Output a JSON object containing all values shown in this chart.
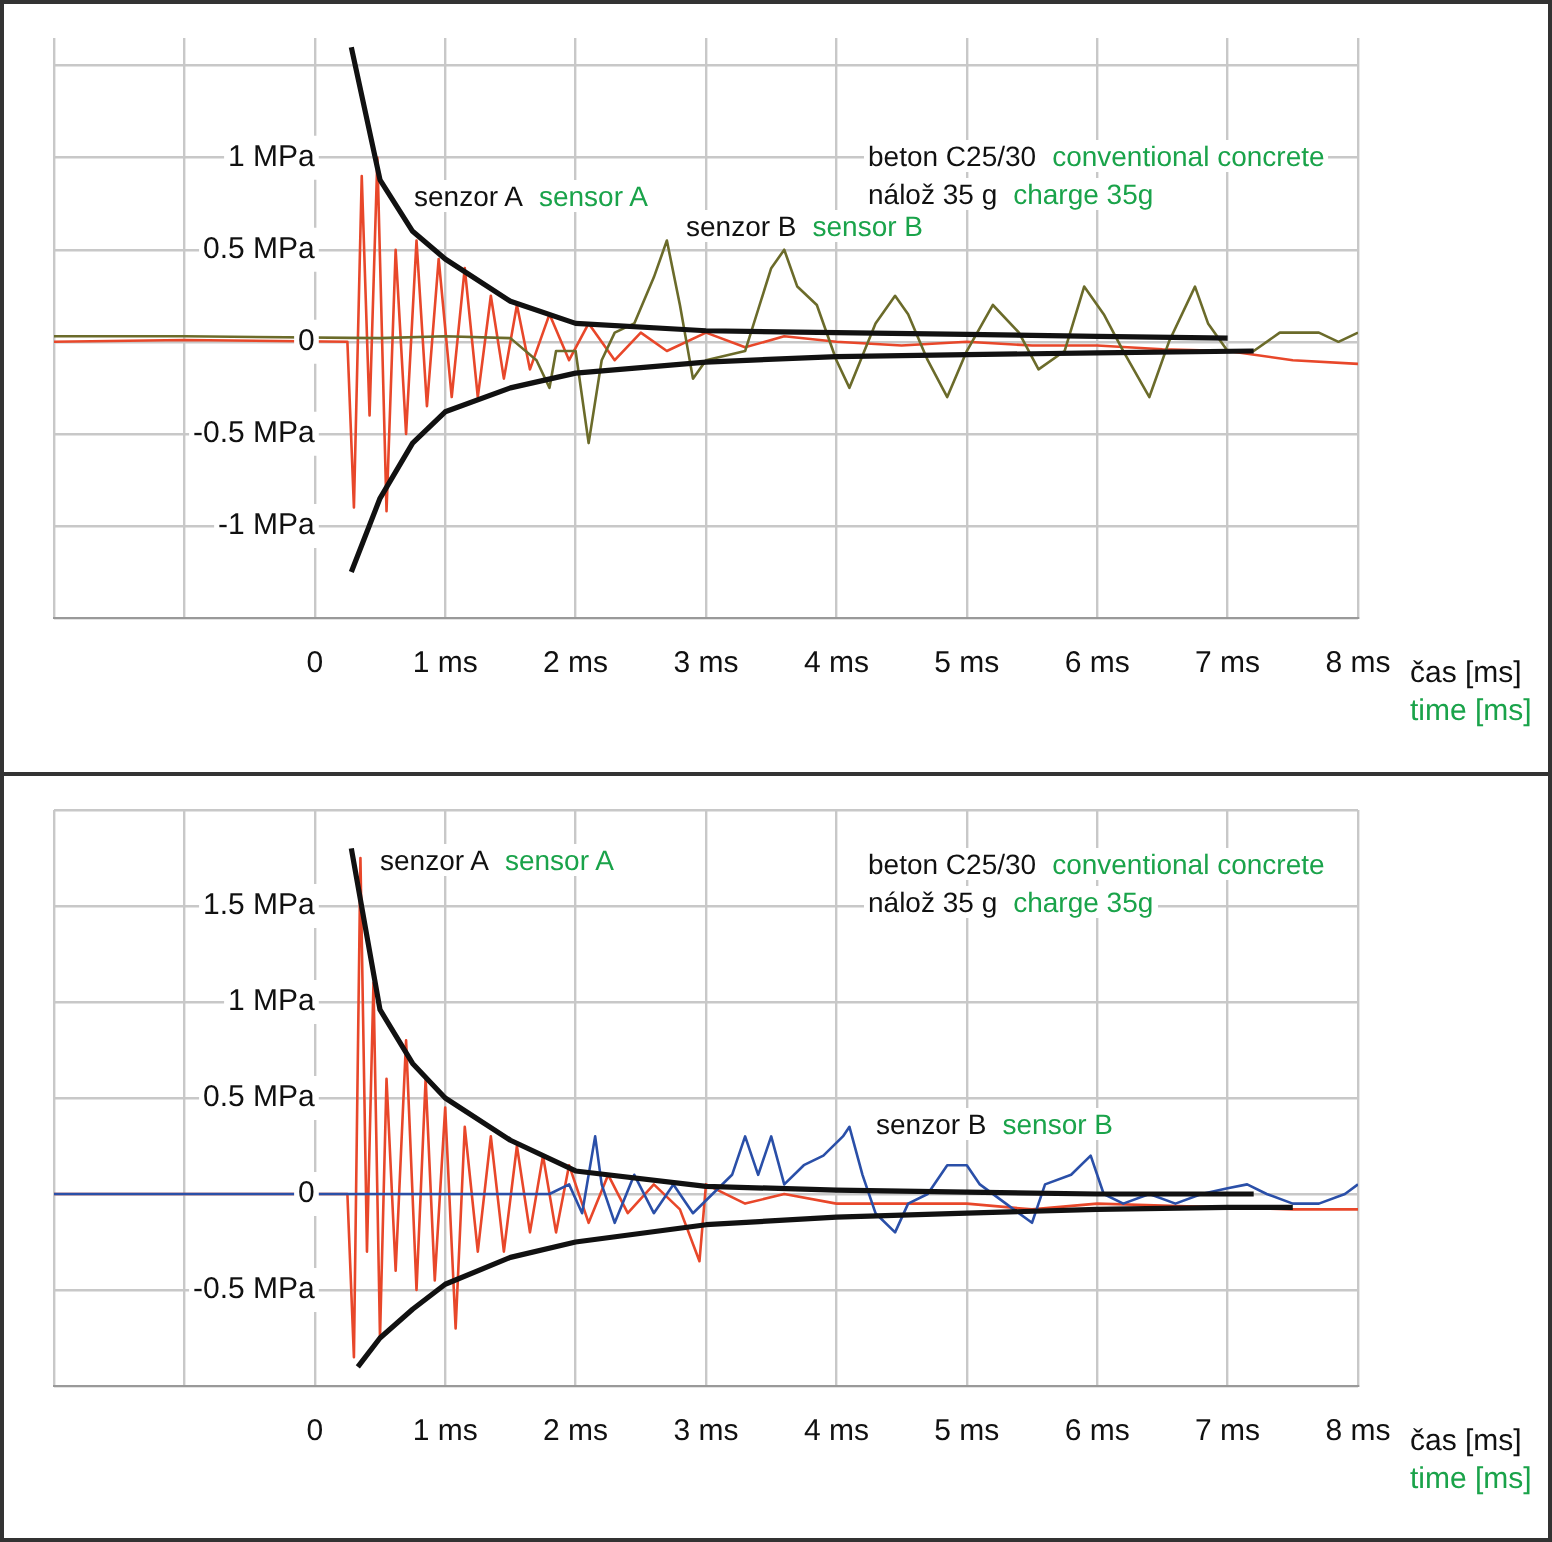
{
  "chart_data": [
    {
      "type": "line",
      "xlim": [
        -2,
        8
      ],
      "ylim": [
        -1.5,
        1.65
      ],
      "xticks": [
        {
          "value": -2,
          "label": null
        },
        {
          "value": -1,
          "label": null
        },
        0,
        {
          "value": 1,
          "label": "1 ms"
        },
        {
          "value": 2,
          "label": "2 ms"
        },
        {
          "value": 3,
          "label": "3 ms"
        },
        {
          "value": 4,
          "label": "4 ms"
        },
        {
          "value": 5,
          "label": "5 ms"
        },
        {
          "value": 6,
          "label": "6 ms"
        },
        {
          "value": 7,
          "label": "7 ms"
        },
        {
          "value": 8,
          "label": "8 ms"
        }
      ],
      "yticks": [
        {
          "value": -1.5,
          "label": null
        },
        {
          "value": -1,
          "label": "-1 MPa"
        },
        {
          "value": -0.5,
          "label": "-0.5 MPa"
        },
        0,
        {
          "value": 0.5,
          "label": "0.5 MPa"
        },
        {
          "value": 1,
          "label": "1 MPa"
        },
        {
          "value": 1.5,
          "label": null
        }
      ],
      "xlabel": "čas [ms]\ntime [ms]",
      "grid": true,
      "annotations": [
        "senzor A",
        "sensor A",
        "senzor B",
        "sensor B",
        "beton C25/30",
        "conventional concrete",
        "nálož 35 g",
        "charge 35g"
      ],
      "series": [
        {
          "color": "#e8472a",
          "x": [
            -2,
            -1,
            0.25,
            0.3,
            0.36,
            0.42,
            0.48,
            0.55,
            0.62,
            0.7,
            0.78,
            0.86,
            0.95,
            1.05,
            1.15,
            1.25,
            1.35,
            1.45,
            1.55,
            1.65,
            1.8,
            1.95,
            2.1,
            2.3,
            2.5,
            2.7,
            3.0,
            3.3,
            3.6,
            4,
            4.5,
            5,
            5.5,
            6,
            6.5,
            7,
            7.5,
            8
          ],
          "values": [
            0,
            0.01,
            0,
            -0.9,
            0.9,
            -0.4,
            1.0,
            -0.92,
            0.5,
            -0.5,
            0.55,
            -0.35,
            0.45,
            -0.3,
            0.4,
            -0.3,
            0.25,
            -0.2,
            0.2,
            -0.15,
            0.15,
            -0.1,
            0.1,
            -0.1,
            0.05,
            -0.05,
            0.05,
            -0.03,
            0.03,
            0,
            -0.02,
            0,
            -0.02,
            -0.02,
            -0.04,
            -0.05,
            -0.1,
            -0.12
          ]
        },
        {
          "color": "#6b6b2a",
          "x": [
            -2,
            -1,
            0.5,
            1,
            1.5,
            1.7,
            1.8,
            1.85,
            2.0,
            2.1,
            2.2,
            2.3,
            2.45,
            2.6,
            2.7,
            2.8,
            2.9,
            3.0,
            3.3,
            3.5,
            3.6,
            3.7,
            3.85,
            4.0,
            4.1,
            4.3,
            4.45,
            4.55,
            4.7,
            4.85,
            5.0,
            5.2,
            5.4,
            5.55,
            5.75,
            5.9,
            6.05,
            6.2,
            6.4,
            6.55,
            6.75,
            6.85,
            7.0,
            7.2,
            7.4,
            7.7,
            7.85,
            8
          ],
          "values": [
            0.03,
            0.03,
            0.02,
            0.03,
            0.02,
            -0.1,
            -0.25,
            -0.05,
            -0.05,
            -0.55,
            -0.1,
            0.05,
            0.1,
            0.35,
            0.55,
            0.2,
            -0.2,
            -0.1,
            -0.05,
            0.4,
            0.5,
            0.3,
            0.2,
            -0.1,
            -0.25,
            0.1,
            0.25,
            0.15,
            -0.1,
            -0.3,
            -0.05,
            0.2,
            0.05,
            -0.15,
            -0.05,
            0.3,
            0.15,
            -0.05,
            -0.3,
            0.0,
            0.3,
            0.1,
            -0.05,
            -0.05,
            0.05,
            0.05,
            0.0,
            0.05
          ]
        },
        {
          "color": "#111111",
          "x": [
            0.28,
            0.5,
            0.75,
            1,
            1.5,
            2,
            3,
            4,
            5,
            6,
            7
          ],
          "values": [
            1.6,
            0.88,
            0.6,
            0.45,
            0.22,
            0.1,
            0.06,
            0.05,
            0.04,
            0.03,
            0.02
          ]
        },
        {
          "color": "#111111",
          "x": [
            0.28,
            0.5,
            0.75,
            1,
            1.5,
            2,
            3,
            4,
            5,
            6,
            7.2
          ],
          "values": [
            -1.25,
            -0.85,
            -0.55,
            -0.38,
            -0.25,
            -0.17,
            -0.11,
            -0.08,
            -0.07,
            -0.06,
            -0.05
          ]
        }
      ]
    },
    {
      "type": "line",
      "xlim": [
        -2,
        8
      ],
      "ylim": [
        -1,
        2
      ],
      "xticks": [
        {
          "value": -2,
          "label": null
        },
        {
          "value": -1,
          "label": null
        },
        0,
        {
          "value": 1,
          "label": "1 ms"
        },
        {
          "value": 2,
          "label": "2 ms"
        },
        {
          "value": 3,
          "label": "3 ms"
        },
        {
          "value": 4,
          "label": "4 ms"
        },
        {
          "value": 5,
          "label": "5 ms"
        },
        {
          "value": 6,
          "label": "6 ms"
        },
        {
          "value": 7,
          "label": "7 ms"
        },
        {
          "value": 8,
          "label": "8 ms"
        }
      ],
      "yticks": [
        {
          "value": -1,
          "label": null
        },
        {
          "value": -0.5,
          "label": "-0.5 MPa"
        },
        0,
        {
          "value": 0.5,
          "label": "0.5 MPa"
        },
        {
          "value": 1,
          "label": "1 MPa"
        },
        {
          "value": 1.5,
          "label": "1.5 MPa"
        },
        {
          "value": 2,
          "label": null
        }
      ],
      "xlabel": "čas [ms]\ntime [ms]",
      "grid": true,
      "annotations": [
        "senzor A",
        "sensor A",
        "senzor B",
        "sensor B",
        "beton C25/30",
        "conventional concrete",
        "nálož 35 g",
        "charge 35g"
      ],
      "series": [
        {
          "color": "#e8472a",
          "x": [
            -2,
            0.25,
            0.3,
            0.35,
            0.4,
            0.45,
            0.5,
            0.55,
            0.62,
            0.7,
            0.78,
            0.85,
            0.92,
            1.0,
            1.08,
            1.15,
            1.25,
            1.35,
            1.45,
            1.55,
            1.65,
            1.75,
            1.85,
            1.95,
            2.1,
            2.25,
            2.4,
            2.6,
            2.8,
            2.95,
            3.0,
            3.3,
            3.6,
            4,
            4.5,
            5,
            5.5,
            6,
            6.5,
            7,
            7.5,
            8
          ],
          "values": [
            0,
            0,
            -0.85,
            1.75,
            -0.3,
            1.1,
            -0.75,
            0.6,
            -0.4,
            0.8,
            -0.5,
            0.6,
            -0.45,
            0.45,
            -0.7,
            0.35,
            -0.3,
            0.3,
            -0.3,
            0.25,
            -0.2,
            0.2,
            -0.2,
            0.15,
            -0.15,
            0.1,
            -0.1,
            0.05,
            -0.08,
            -0.35,
            0.05,
            -0.05,
            0,
            -0.05,
            -0.05,
            -0.05,
            -0.08,
            -0.05,
            -0.06,
            -0.07,
            -0.08,
            -0.08
          ]
        },
        {
          "color": "#2a4fa8",
          "x": [
            -2,
            -1,
            1,
            1.8,
            1.95,
            2.05,
            2.15,
            2.2,
            2.3,
            2.45,
            2.6,
            2.75,
            2.9,
            3.05,
            3.2,
            3.3,
            3.4,
            3.5,
            3.6,
            3.75,
            3.9,
            4.05,
            4.1,
            4.2,
            4.3,
            4.45,
            4.55,
            4.7,
            4.85,
            5.0,
            5.1,
            5.3,
            5.5,
            5.6,
            5.8,
            5.95,
            6.05,
            6.2,
            6.4,
            6.6,
            6.8,
            7.0,
            7.15,
            7.3,
            7.5,
            7.7,
            7.9,
            8
          ],
          "values": [
            0,
            0,
            0,
            0,
            0.05,
            -0.1,
            0.3,
            0.05,
            -0.15,
            0.1,
            -0.1,
            0.05,
            -0.1,
            0.0,
            0.1,
            0.3,
            0.1,
            0.3,
            0.05,
            0.15,
            0.2,
            0.3,
            0.35,
            0.1,
            -0.1,
            -0.2,
            -0.05,
            0.0,
            0.15,
            0.15,
            0.05,
            -0.05,
            -0.15,
            0.05,
            0.1,
            0.2,
            0.0,
            -0.05,
            0.0,
            -0.05,
            0.0,
            0.03,
            0.05,
            0.0,
            -0.05,
            -0.05,
            0.0,
            0.05
          ]
        },
        {
          "color": "#111111",
          "x": [
            0.28,
            0.5,
            0.75,
            1,
            1.5,
            2,
            3,
            4,
            5,
            6,
            7.2
          ],
          "values": [
            1.8,
            0.96,
            0.68,
            0.5,
            0.28,
            0.12,
            0.04,
            0.02,
            0.01,
            0.0,
            0.0
          ]
        },
        {
          "color": "#111111",
          "x": [
            0.33,
            0.5,
            0.75,
            1,
            1.5,
            2,
            3,
            4,
            5,
            6,
            7,
            7.5
          ],
          "values": [
            -0.9,
            -0.75,
            -0.6,
            -0.47,
            -0.33,
            -0.25,
            -0.16,
            -0.12,
            -0.1,
            -0.08,
            -0.07,
            -0.07
          ]
        }
      ]
    }
  ]
}
